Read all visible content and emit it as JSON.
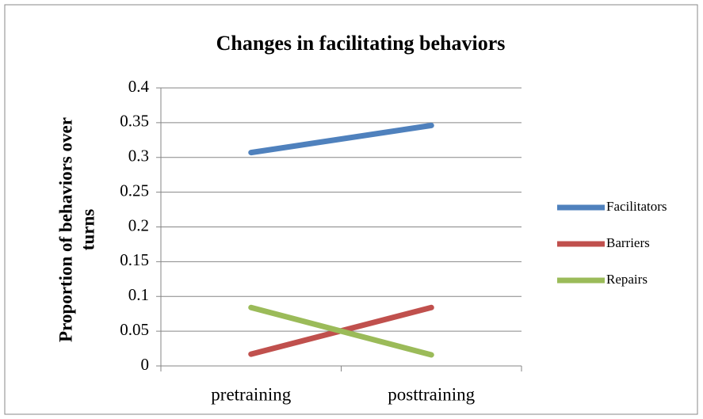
{
  "chart_data": {
    "type": "line",
    "title": "Changes in facilitating behaviors",
    "ylabel": "Proportion of behaviors over turns",
    "categories": [
      "pretraining",
      "posttraining"
    ],
    "series": [
      {
        "name": "Facilitators",
        "color": "#4f81bd",
        "values": [
          0.307,
          0.346
        ]
      },
      {
        "name": "Barriers",
        "color": "#c0504d",
        "values": [
          0.017,
          0.084
        ]
      },
      {
        "name": "Repairs",
        "color": "#9bbb59",
        "values": [
          0.084,
          0.016
        ]
      }
    ],
    "ylim": [
      0,
      0.4
    ],
    "yticks": [
      0,
      0.05,
      0.1,
      0.15,
      0.2,
      0.25,
      0.3,
      0.35,
      0.4
    ],
    "grid": true,
    "legend": "right"
  }
}
